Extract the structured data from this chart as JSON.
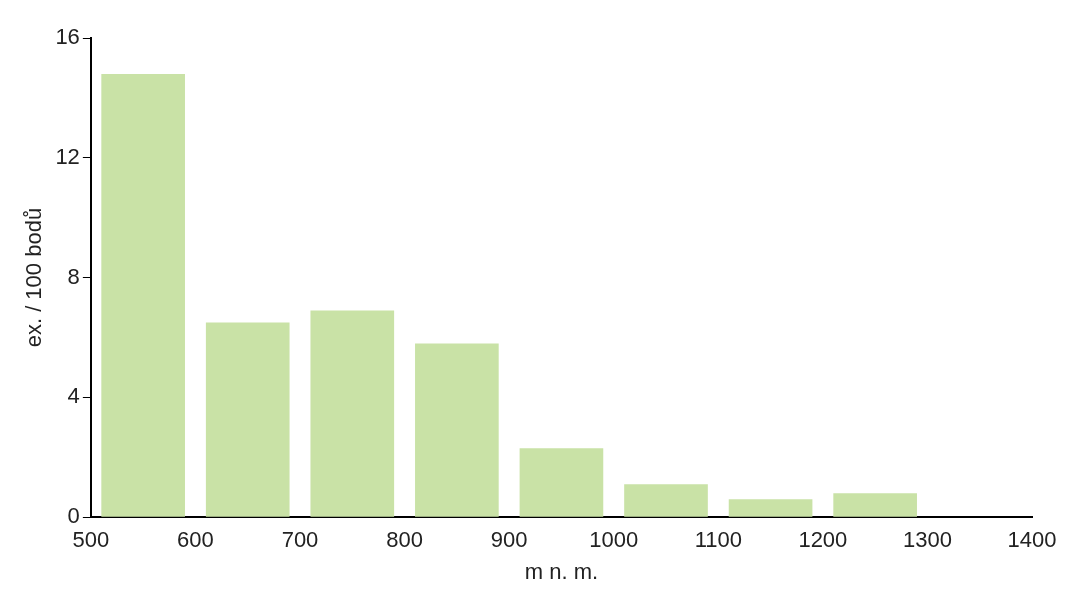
{
  "chart_data": {
    "type": "histogram",
    "xlabel": "m n. m.",
    "ylabel": "ex. / 100 bodů",
    "bins": [
      500,
      600,
      700,
      800,
      900,
      1000,
      1100,
      1200,
      1300
    ],
    "values": [
      14.8,
      6.5,
      6.9,
      5.8,
      2.3,
      1.1,
      0.6,
      0.8
    ],
    "color": "#c9e2a6",
    "xlim": [
      500,
      1400
    ],
    "xticks": [
      500,
      600,
      700,
      800,
      900,
      1000,
      1100,
      1200,
      1300,
      1400
    ],
    "ylim": [
      0,
      16
    ],
    "yticks": [
      0,
      4,
      8,
      12,
      16
    ],
    "grid": false,
    "legend": false
  }
}
